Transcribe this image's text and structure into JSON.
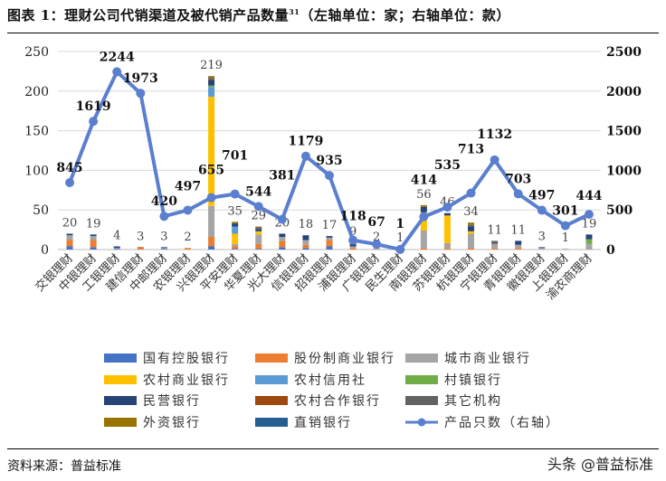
{
  "title": "图表 1：理财公司代销渠道及被代销产品数量",
  "title_sup": "31",
  "title_suffix": "（左轴单位：家；右轴单位：款）",
  "source": "资料来源：普益标准",
  "watermark": "头条 @普益标准",
  "chart_data": {
    "type": "bar",
    "stacked": true,
    "categories": [
      "交银理财",
      "中银理财",
      "工银理财",
      "建信理财",
      "中邮理财",
      "农银理财",
      "兴银理财",
      "平安理财",
      "华夏理财",
      "光大理财",
      "信银理财",
      "招银理财",
      "浦银理财",
      "广银理财",
      "民生理财",
      "南银理财",
      "苏银理财",
      "杭银理财",
      "宁银理财",
      "青银理财",
      "徽银理财",
      "上银理财",
      "渝农商理财"
    ],
    "left_axis": {
      "ylim": [
        0,
        250
      ],
      "ticks": [
        0,
        50,
        100,
        150,
        200,
        250
      ]
    },
    "right_axis": {
      "ylim": [
        0,
        2500
      ],
      "ticks": [
        0,
        500,
        1000,
        1500,
        2000,
        2500
      ]
    },
    "grid": true,
    "legend_placement": "bottom",
    "bar_totals": [
      20,
      19,
      4,
      3,
      3,
      2,
      219,
      35,
      29,
      20,
      18,
      17,
      9,
      2,
      1,
      56,
      46,
      34,
      11,
      11,
      3,
      1,
      19
    ],
    "series": [
      {
        "name": "国有控股银行",
        "color": "#4472C4",
        "values": [
          4,
          3,
          1,
          0,
          1,
          0,
          4,
          1,
          1,
          3,
          2,
          4,
          0,
          0,
          0,
          0,
          0,
          0,
          0,
          0,
          0,
          0,
          0
        ]
      },
      {
        "name": "股份制商业银行",
        "color": "#ED7D31",
        "values": [
          8,
          9,
          0,
          2,
          0,
          2,
          12,
          3,
          6,
          8,
          4,
          8,
          2,
          0,
          0,
          2,
          2,
          2,
          2,
          2,
          0,
          0,
          0
        ]
      },
      {
        "name": "城市商业银行",
        "color": "#A5A5A5",
        "values": [
          6,
          5,
          1,
          0,
          1,
          0,
          39,
          3,
          12,
          5,
          6,
          3,
          2,
          2,
          1,
          22,
          6,
          18,
          5,
          4,
          2,
          1,
          7
        ]
      },
      {
        "name": "农村商业银行",
        "color": "#FFC000",
        "values": [
          0,
          0,
          0,
          0,
          0,
          0,
          138,
          13,
          4,
          0,
          0,
          0,
          0,
          0,
          0,
          23,
          35,
          3,
          0,
          0,
          0,
          0,
          0
        ]
      },
      {
        "name": "农村信用社",
        "color": "#5B9BD5",
        "values": [
          0,
          0,
          0,
          0,
          0,
          0,
          12,
          9,
          0,
          0,
          0,
          0,
          0,
          0,
          0,
          0,
          0,
          0,
          0,
          0,
          0,
          0,
          0
        ]
      },
      {
        "name": "村镇银行",
        "color": "#70AD47",
        "values": [
          0,
          0,
          0,
          0,
          0,
          0,
          2,
          0,
          0,
          0,
          0,
          0,
          0,
          0,
          0,
          0,
          0,
          0,
          0,
          0,
          0,
          0,
          6
        ]
      },
      {
        "name": "民营银行",
        "color": "#264478",
        "values": [
          2,
          2,
          2,
          0,
          1,
          0,
          7,
          4,
          3,
          4,
          6,
          2,
          3,
          0,
          0,
          7,
          3,
          6,
          0,
          5,
          1,
          0,
          6
        ]
      },
      {
        "name": "农村合作银行",
        "color": "#9E480E",
        "values": [
          0,
          0,
          0,
          1,
          0,
          0,
          1,
          0,
          0,
          0,
          0,
          0,
          0,
          0,
          0,
          0,
          0,
          0,
          0,
          0,
          0,
          0,
          0
        ]
      },
      {
        "name": "其它机构",
        "color": "#636363",
        "values": [
          0,
          0,
          0,
          0,
          0,
          0,
          2,
          0,
          2,
          0,
          0,
          0,
          0,
          0,
          0,
          0,
          0,
          2,
          4,
          0,
          0,
          0,
          0
        ]
      },
      {
        "name": "外资银行",
        "color": "#997300",
        "values": [
          0,
          0,
          0,
          0,
          0,
          0,
          2,
          2,
          1,
          0,
          0,
          0,
          0,
          0,
          0,
          2,
          0,
          3,
          0,
          0,
          0,
          0,
          0
        ]
      },
      {
        "name": "直销银行",
        "color": "#255E91",
        "values": [
          0,
          0,
          0,
          0,
          0,
          0,
          0,
          0,
          0,
          0,
          0,
          0,
          2,
          0,
          0,
          0,
          0,
          0,
          0,
          0,
          0,
          0,
          0
        ]
      }
    ],
    "line_series": {
      "name": "产品只数（右轴）",
      "axis": "right",
      "color": "#5B7FCF",
      "values": [
        845,
        1619,
        2244,
        1973,
        420,
        497,
        655,
        701,
        544,
        381,
        1179,
        935,
        118,
        67,
        1,
        414,
        535,
        713,
        1132,
        703,
        497,
        301,
        444
      ]
    }
  }
}
